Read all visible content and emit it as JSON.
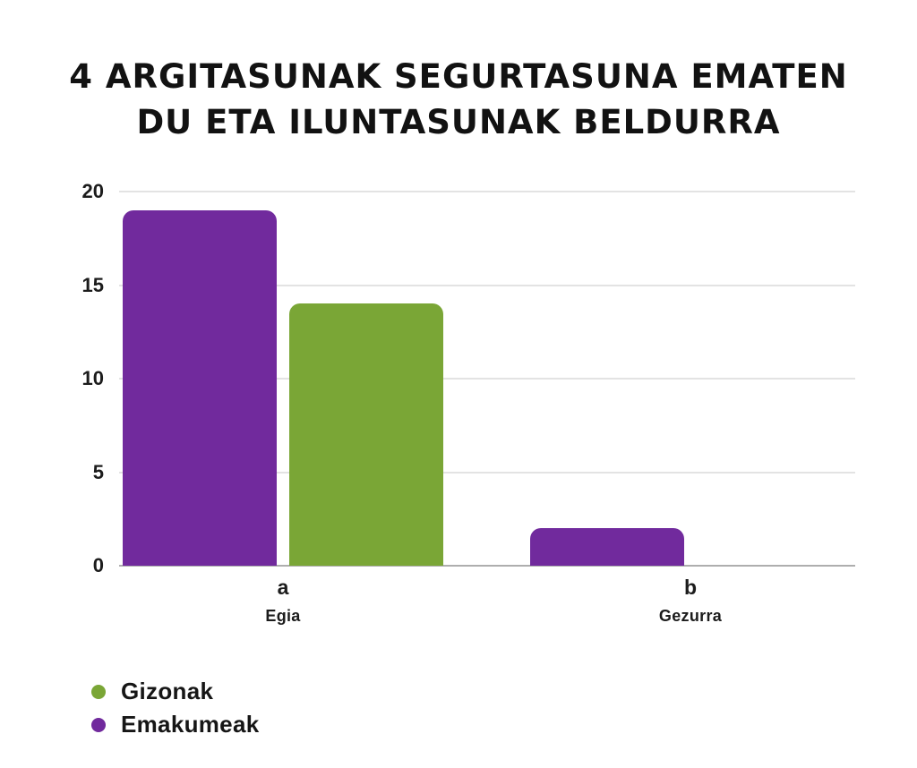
{
  "title": {
    "line1": "4 ARGITASUNAK SEGURTASUNA EMATEN",
    "line2": "DU ETA ILUNTASUNAK BELDURRA"
  },
  "colors": {
    "purple": "#712A9D",
    "green": "#7AA636",
    "gridline": "#e3e3e3",
    "axis_line": "#aeaeae",
    "text": "#1c1c1c",
    "title_text": "#121212"
  },
  "chart_data": {
    "type": "bar",
    "categories": [
      {
        "letter": "a",
        "label": "Egia"
      },
      {
        "letter": "b",
        "label": "Gezurra"
      }
    ],
    "series": [
      {
        "name": "Emakumeak",
        "color_key": "purple",
        "values": [
          19,
          2
        ]
      },
      {
        "name": "Gizonak",
        "color_key": "green",
        "values": [
          14,
          0
        ]
      }
    ],
    "yticks": [
      0,
      5,
      10,
      15,
      20
    ],
    "ylim": [
      0,
      20
    ],
    "grid": true,
    "legend_position": "bottom-left",
    "xlabel": "",
    "ylabel": ""
  },
  "legend": {
    "items": [
      {
        "label": "Gizonak",
        "color_key": "green"
      },
      {
        "label": "Emakumeak",
        "color_key": "purple"
      }
    ]
  }
}
